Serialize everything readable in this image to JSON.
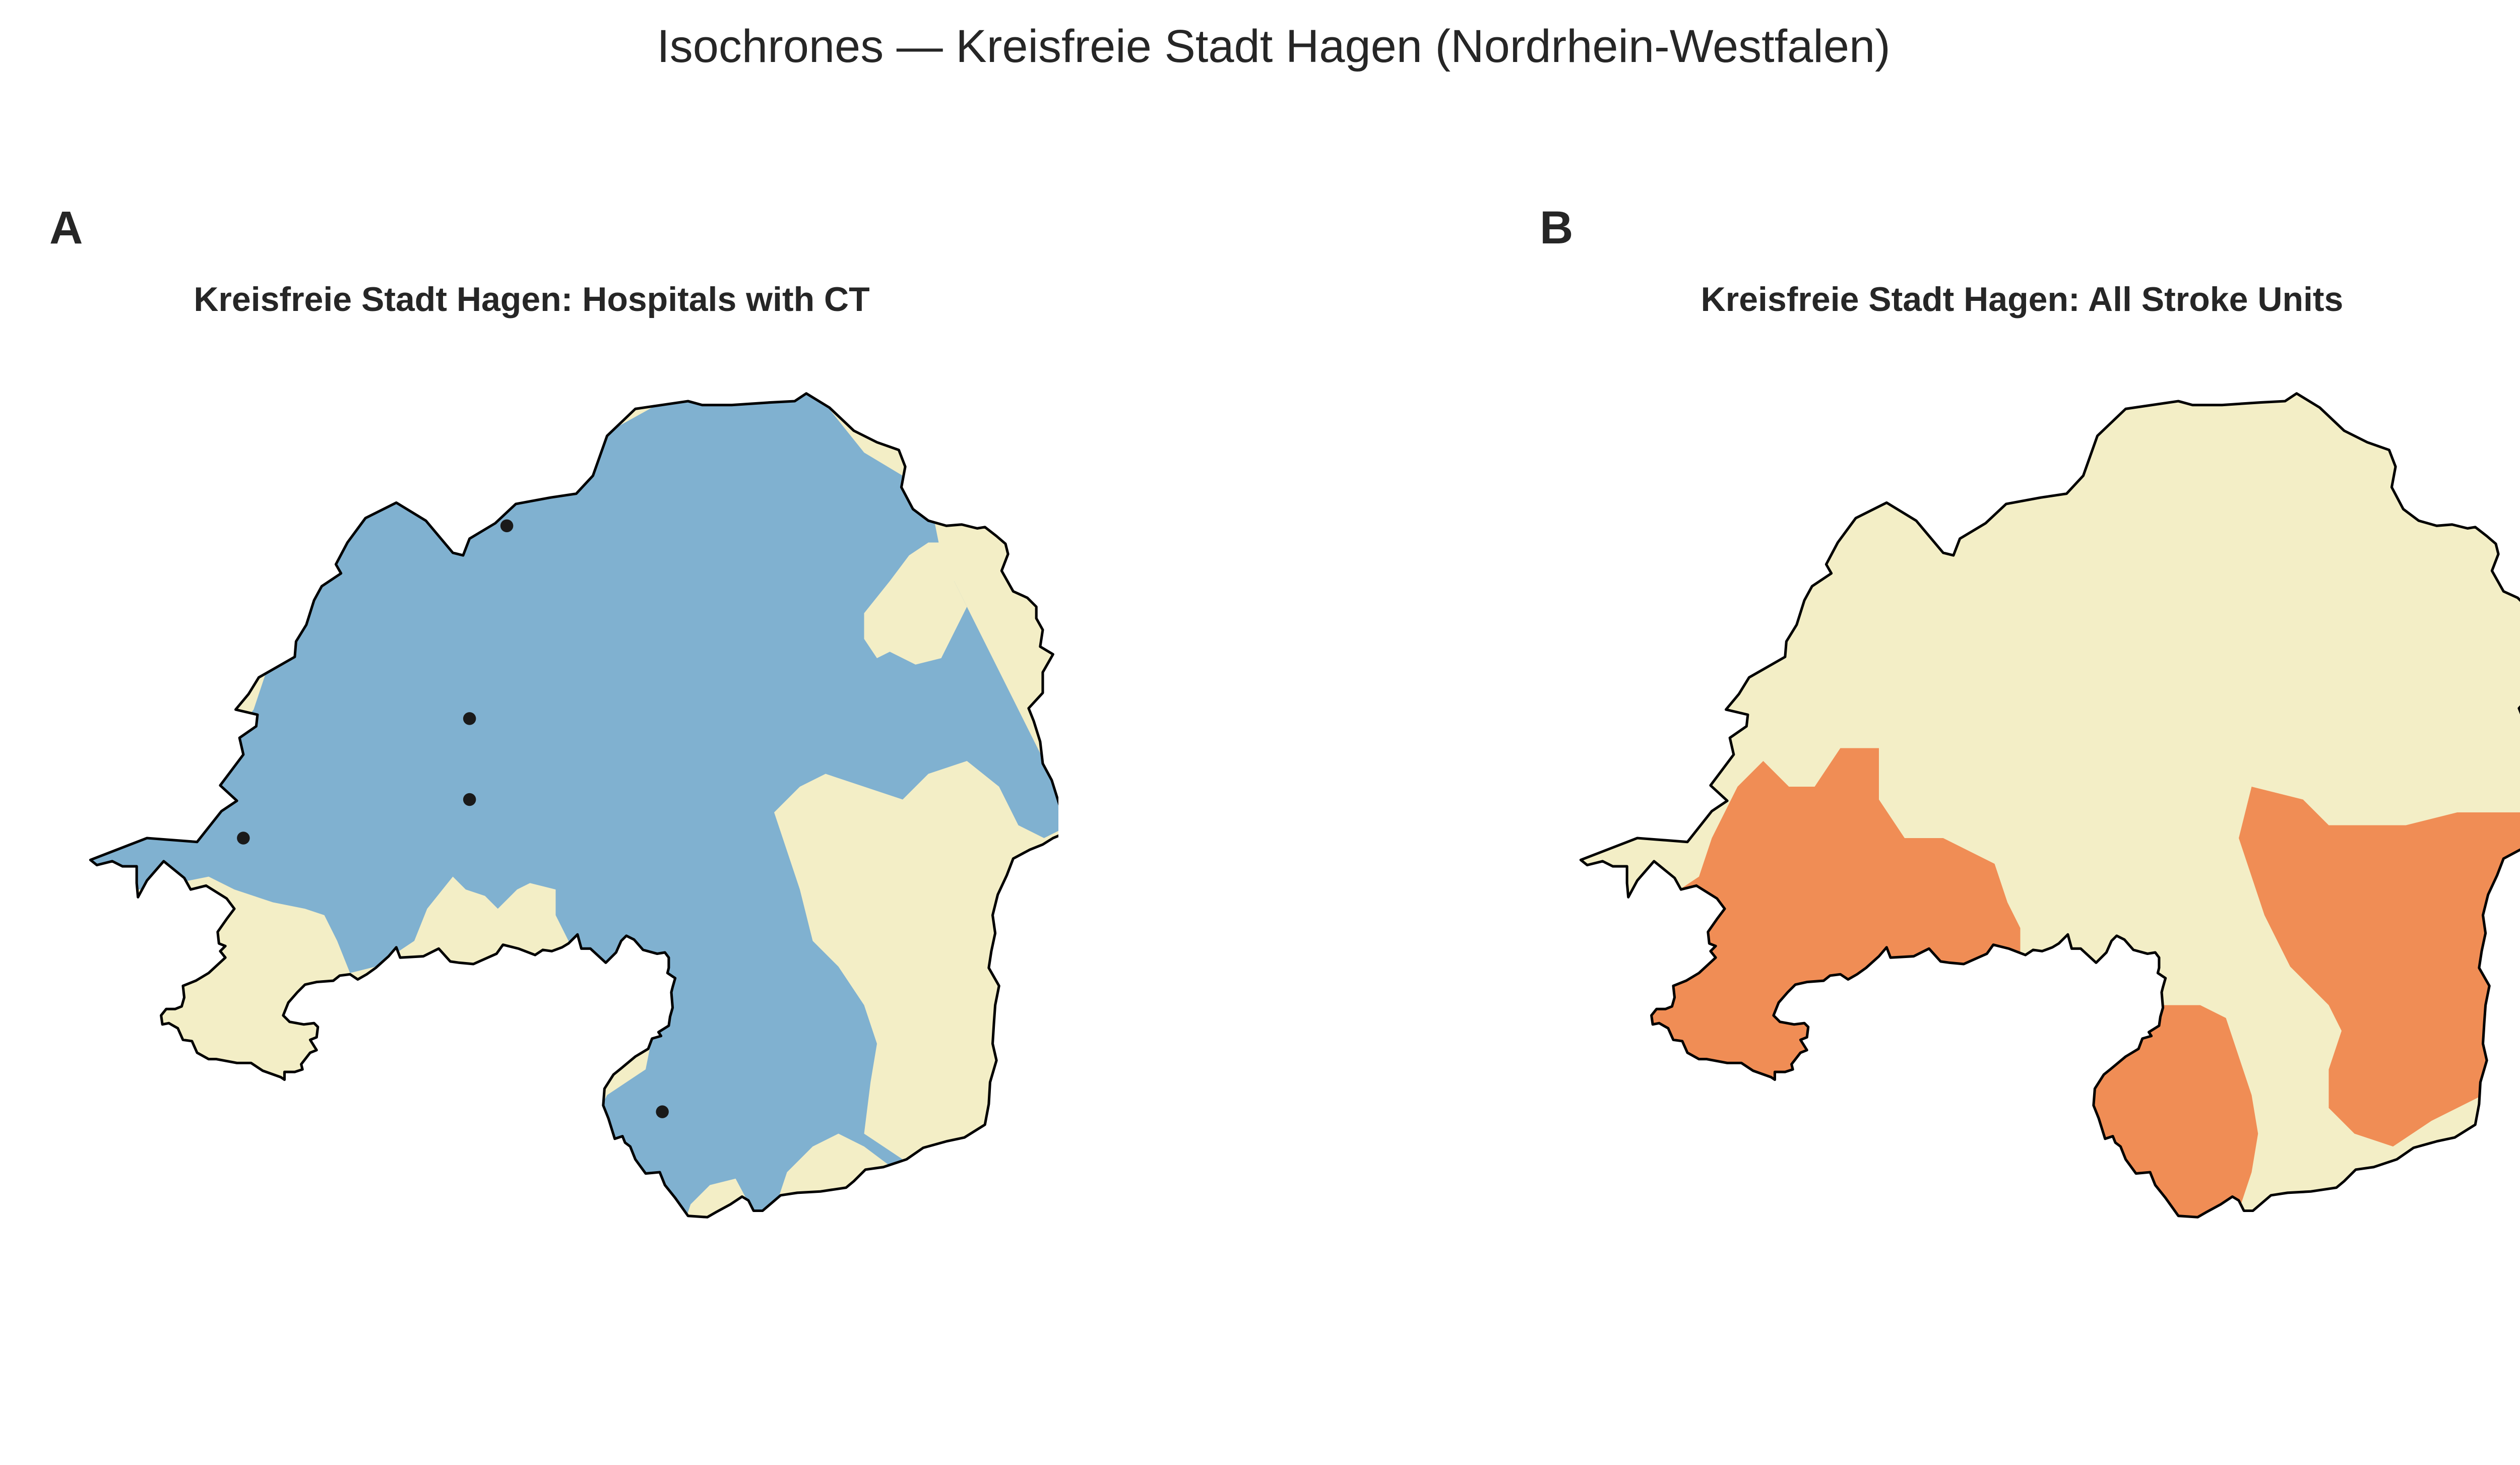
{
  "title": "Isochrones — Kreisfreie Stadt Hagen (Nordrhein-Westfalen)",
  "panels": [
    {
      "letter": "A",
      "title": "Kreisfreie Stadt Hagen: Hospitals with CT",
      "hospital_count": 5
    },
    {
      "letter": "B",
      "title": "Kreisfreie Stadt Hagen: All Stroke Units"
    }
  ],
  "colors": {
    "background_zone": "#f3eec6",
    "blue_zone": "#80b1d0",
    "orange_zone": "#f08d55",
    "outline": "#000000",
    "hospital_marker": "#1a1a1a"
  }
}
